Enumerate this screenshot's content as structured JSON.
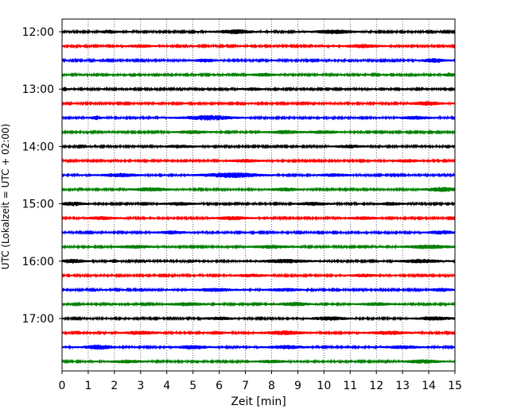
{
  "chart_data": {
    "type": "line",
    "title": "",
    "xlabel": "Zeit  [min]",
    "ylabel": "UTC (Lokalzeit = UTC + 02:00)",
    "xlim": [
      0,
      15
    ],
    "x_ticks": [
      0,
      1,
      2,
      3,
      4,
      5,
      6,
      7,
      8,
      9,
      10,
      11,
      12,
      13,
      14,
      15
    ],
    "x_tick_labels": [
      "0",
      "1",
      "2",
      "3",
      "4",
      "5",
      "6",
      "7",
      "8",
      "9",
      "10",
      "11",
      "12",
      "13",
      "14",
      "15"
    ],
    "y_tick_labels": [
      "12:00",
      "13:00",
      "14:00",
      "15:00",
      "16:00",
      "17:00"
    ],
    "grid": "vertical dotted",
    "trace_colors": [
      "#000000",
      "#ff0000",
      "#0000ff",
      "#008000"
    ],
    "traces_per_hour": 4,
    "minutes_per_trace": 15,
    "traces": [
      {
        "start": "12:00",
        "color": "#000000",
        "events": [
          [
            6.6,
            0.6,
            2.2
          ],
          [
            10.4,
            0.7,
            2.0
          ],
          [
            1.8,
            0.3,
            1.5
          ]
        ]
      },
      {
        "start": "12:15",
        "color": "#ff0000",
        "events": [
          [
            11.5,
            0.6,
            1.6
          ],
          [
            3.0,
            0.4,
            1.3
          ]
        ]
      },
      {
        "start": "12:30",
        "color": "#0000ff",
        "events": [
          [
            14.2,
            0.4,
            2.0
          ],
          [
            5.5,
            0.4,
            1.4
          ]
        ]
      },
      {
        "start": "12:45",
        "color": "#008000",
        "events": [
          [
            7.7,
            0.4,
            1.5
          ],
          [
            14.8,
            0.2,
            1.8
          ]
        ]
      },
      {
        "start": "13:00",
        "color": "#000000",
        "events": [
          [
            0.1,
            0.1,
            2.0
          ],
          [
            7.3,
            0.3,
            1.3
          ]
        ]
      },
      {
        "start": "13:15",
        "color": "#ff0000",
        "events": [
          [
            13.9,
            0.5,
            2.0
          ]
        ]
      },
      {
        "start": "13:30",
        "color": "#0000ff",
        "events": [
          [
            5.6,
            0.9,
            2.4
          ],
          [
            1.3,
            0.2,
            2.0
          ],
          [
            13.5,
            0.5,
            1.5
          ]
        ]
      },
      {
        "start": "13:45",
        "color": "#008000",
        "events": [
          [
            5.0,
            0.5,
            1.6
          ],
          [
            8.5,
            0.5,
            1.7
          ],
          [
            10.0,
            0.5,
            1.6
          ]
        ]
      },
      {
        "start": "14:00",
        "color": "#000000",
        "events": [
          [
            11.0,
            0.5,
            1.4
          ],
          [
            4.5,
            0.5,
            1.3
          ]
        ]
      },
      {
        "start": "14:15",
        "color": "#ff0000",
        "events": [
          [
            7.0,
            0.5,
            1.4
          ],
          [
            13.2,
            0.4,
            1.5
          ]
        ]
      },
      {
        "start": "14:30",
        "color": "#0000ff",
        "events": [
          [
            6.5,
            1.0,
            2.6
          ],
          [
            2.2,
            0.6,
            1.8
          ],
          [
            10.4,
            0.5,
            1.5
          ]
        ]
      },
      {
        "start": "14:45",
        "color": "#008000",
        "events": [
          [
            3.4,
            0.6,
            1.8
          ],
          [
            14.5,
            0.6,
            2.2
          ],
          [
            8.5,
            0.5,
            1.5
          ]
        ]
      },
      {
        "start": "15:00",
        "color": "#000000",
        "events": [
          [
            0.4,
            0.4,
            2.0
          ],
          [
            4.5,
            0.5,
            1.5
          ],
          [
            9.6,
            0.5,
            1.6
          ],
          [
            12.6,
            0.4,
            1.5
          ]
        ]
      },
      {
        "start": "15:15",
        "color": "#ff0000",
        "events": [
          [
            1.5,
            0.5,
            1.5
          ],
          [
            6.5,
            0.6,
            1.6
          ],
          [
            11.5,
            0.5,
            1.4
          ]
        ]
      },
      {
        "start": "15:30",
        "color": "#0000ff",
        "events": [
          [
            4.2,
            0.5,
            1.5
          ],
          [
            14.5,
            0.5,
            1.7
          ]
        ]
      },
      {
        "start": "15:45",
        "color": "#008000",
        "events": [
          [
            2.8,
            0.6,
            1.4
          ],
          [
            8.0,
            0.6,
            1.5
          ],
          [
            14.0,
            0.8,
            1.8
          ]
        ]
      },
      {
        "start": "16:00",
        "color": "#000000",
        "events": [
          [
            0.4,
            0.4,
            2.0
          ],
          [
            8.5,
            0.8,
            1.9
          ],
          [
            13.7,
            0.7,
            1.8
          ],
          [
            2.0,
            0.1,
            1.8
          ]
        ]
      },
      {
        "start": "16:15",
        "color": "#ff0000",
        "events": [
          [
            7.2,
            0.6,
            1.3
          ],
          [
            11.5,
            0.5,
            1.3
          ]
        ]
      },
      {
        "start": "16:30",
        "color": "#0000ff",
        "events": [
          [
            5.8,
            0.7,
            1.6
          ],
          [
            8.5,
            0.6,
            1.4
          ],
          [
            14.5,
            0.4,
            1.5
          ]
        ]
      },
      {
        "start": "16:45",
        "color": "#008000",
        "events": [
          [
            4.8,
            0.6,
            1.6
          ],
          [
            8.9,
            0.5,
            1.9
          ],
          [
            12.0,
            0.5,
            1.4
          ]
        ]
      },
      {
        "start": "17:00",
        "color": "#000000",
        "events": [
          [
            10.2,
            0.6,
            1.8
          ],
          [
            14.2,
            0.6,
            1.8
          ],
          [
            6.0,
            0.5,
            1.4
          ]
        ]
      },
      {
        "start": "17:15",
        "color": "#ff0000",
        "events": [
          [
            3.0,
            0.6,
            1.6
          ],
          [
            8.5,
            0.7,
            2.0
          ],
          [
            12.5,
            0.7,
            1.7
          ],
          [
            5.9,
            0.3,
            1.6
          ]
        ]
      },
      {
        "start": "17:30",
        "color": "#0000ff",
        "events": [
          [
            1.4,
            0.5,
            2.4
          ],
          [
            5.0,
            0.5,
            2.0
          ],
          [
            8.6,
            0.6,
            1.8
          ],
          [
            13.0,
            0.6,
            1.5
          ]
        ]
      },
      {
        "start": "17:45",
        "color": "#008000",
        "events": [
          [
            2.5,
            0.6,
            1.4
          ],
          [
            13.8,
            0.6,
            1.8
          ],
          [
            8.0,
            0.5,
            1.3
          ]
        ]
      }
    ]
  }
}
